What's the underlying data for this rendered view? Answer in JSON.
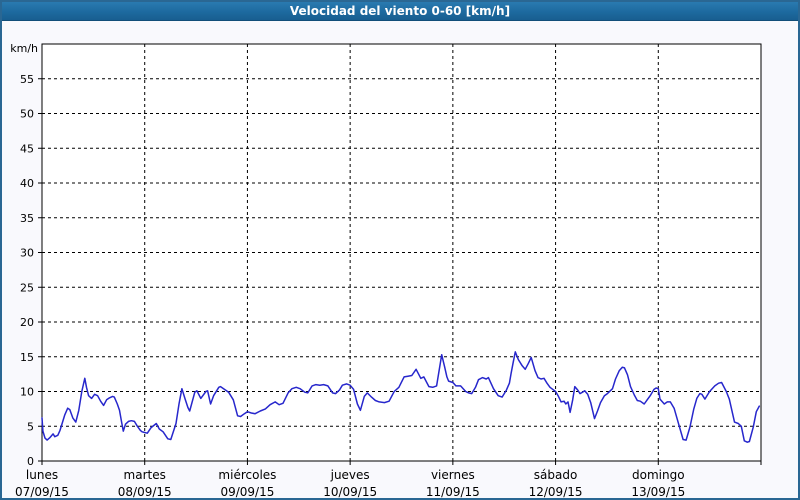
{
  "window": {
    "title": "Velocidad del viento 0-60 [km/h]"
  },
  "colors": {
    "titlebar_bg": "#1d6a9f",
    "titlebar_text": "#ffffff",
    "window_border": "#2a6793",
    "content_bg": "#f9f9fd",
    "plot_bg": "#ffffff",
    "plot_border": "#000000",
    "gridline": "#000000",
    "series_line": "#2727cc",
    "tick_text": "#000000"
  },
  "chart_data": {
    "type": "line",
    "title": "Velocidad del viento 0-60 [km/h]",
    "ylabel": "km/h",
    "xlabel": "",
    "ylim": [
      0,
      60
    ],
    "xlim_hours": [
      0,
      168
    ],
    "grid": "dashed",
    "legend": "none",
    "y_ticks": [
      0,
      5,
      10,
      15,
      20,
      25,
      30,
      35,
      40,
      45,
      50,
      55
    ],
    "x_day_labels": [
      {
        "name": "lunes",
        "date": "07/09/15"
      },
      {
        "name": "martes",
        "date": "08/09/15"
      },
      {
        "name": "miércoles",
        "date": "09/09/15"
      },
      {
        "name": "jueves",
        "date": "10/09/15"
      },
      {
        "name": "viernes",
        "date": "11/09/15"
      },
      {
        "name": "sábado",
        "date": "12/09/15"
      },
      {
        "name": "domingo",
        "date": "13/09/15"
      }
    ],
    "series": [
      {
        "name": "Velocidad del viento [km/h]",
        "points": [
          [
            0,
            6.2
          ],
          [
            0.2,
            4.3
          ],
          [
            0.7,
            3.3
          ],
          [
            1.2,
            3.0
          ],
          [
            1.9,
            3.4
          ],
          [
            2.6,
            3.9
          ],
          [
            3.0,
            3.5
          ],
          [
            3.7,
            3.7
          ],
          [
            4.2,
            4.4
          ],
          [
            4.6,
            5.2
          ],
          [
            5.3,
            6.6
          ],
          [
            6.0,
            7.6
          ],
          [
            6.5,
            7.4
          ],
          [
            7.2,
            6.2
          ],
          [
            7.9,
            5.6
          ],
          [
            8.6,
            7.3
          ],
          [
            9.3,
            10.0
          ],
          [
            10.0,
            11.9
          ],
          [
            10.4,
            10.6
          ],
          [
            10.9,
            9.4
          ],
          [
            11.6,
            9.0
          ],
          [
            12.3,
            9.6
          ],
          [
            13.0,
            9.4
          ],
          [
            13.7,
            8.6
          ],
          [
            14.4,
            8.0
          ],
          [
            15.1,
            8.8
          ],
          [
            15.8,
            9.1
          ],
          [
            16.5,
            9.3
          ],
          [
            16.9,
            9.2
          ],
          [
            17.6,
            8.2
          ],
          [
            18.1,
            7.3
          ],
          [
            18.6,
            5.6
          ],
          [
            19.0,
            4.3
          ],
          [
            19.5,
            5.3
          ],
          [
            20.2,
            5.7
          ],
          [
            20.9,
            5.8
          ],
          [
            21.6,
            5.7
          ],
          [
            22.3,
            5.0
          ],
          [
            23.0,
            4.4
          ],
          [
            23.4,
            4.2
          ],
          [
            24.0,
            4.1
          ],
          [
            24.6,
            4.0
          ],
          [
            25.5,
            4.8
          ],
          [
            26.7,
            5.4
          ],
          [
            27.4,
            4.6
          ],
          [
            28.3,
            4.2
          ],
          [
            29.4,
            3.2
          ],
          [
            30.1,
            3.1
          ],
          [
            31.3,
            5.4
          ],
          [
            32.0,
            8.2
          ],
          [
            32.7,
            10.4
          ],
          [
            33.4,
            9.0
          ],
          [
            34.1,
            7.7
          ],
          [
            34.5,
            7.2
          ],
          [
            35.7,
            9.9
          ],
          [
            36.2,
            10.1
          ],
          [
            37.1,
            9.0
          ],
          [
            38.3,
            10.0
          ],
          [
            38.7,
            10.1
          ],
          [
            39.4,
            8.2
          ],
          [
            40.1,
            9.4
          ],
          [
            41.3,
            10.6
          ],
          [
            41.7,
            10.7
          ],
          [
            42.9,
            10.2
          ],
          [
            43.6,
            9.9
          ],
          [
            44.7,
            8.8
          ],
          [
            45.7,
            6.5
          ],
          [
            46.4,
            6.4
          ],
          [
            47.3,
            6.8
          ],
          [
            48.0,
            7.1
          ],
          [
            48.9,
            6.9
          ],
          [
            49.8,
            6.8
          ],
          [
            51.0,
            7.2
          ],
          [
            52.2,
            7.5
          ],
          [
            53.3,
            8.1
          ],
          [
            54.5,
            8.5
          ],
          [
            55.4,
            8.1
          ],
          [
            56.3,
            8.3
          ],
          [
            57.5,
            9.8
          ],
          [
            58.4,
            10.4
          ],
          [
            59.4,
            10.6
          ],
          [
            60.3,
            10.4
          ],
          [
            61.4,
            9.9
          ],
          [
            62.1,
            9.8
          ],
          [
            63.1,
            10.8
          ],
          [
            64.0,
            11.0
          ],
          [
            64.9,
            10.9
          ],
          [
            65.8,
            11.0
          ],
          [
            66.8,
            10.8
          ],
          [
            67.9,
            9.8
          ],
          [
            68.6,
            9.7
          ],
          [
            69.5,
            10.2
          ],
          [
            70.2,
            10.9
          ],
          [
            71.2,
            11.1
          ],
          [
            72.0,
            10.9
          ],
          [
            72.8,
            10.3
          ],
          [
            73.7,
            8.2
          ],
          [
            74.4,
            7.3
          ],
          [
            75.3,
            9.3
          ],
          [
            76.0,
            9.8
          ],
          [
            77.0,
            9.2
          ],
          [
            77.9,
            8.7
          ],
          [
            78.8,
            8.5
          ],
          [
            80.0,
            8.4
          ],
          [
            81.1,
            8.6
          ],
          [
            82.3,
            10.0
          ],
          [
            83.4,
            10.6
          ],
          [
            84.6,
            12.1
          ],
          [
            85.5,
            12.2
          ],
          [
            86.4,
            12.3
          ],
          [
            87.4,
            13.2
          ],
          [
            88.5,
            11.9
          ],
          [
            89.2,
            12.1
          ],
          [
            90.4,
            10.7
          ],
          [
            91.3,
            10.6
          ],
          [
            92.2,
            10.8
          ],
          [
            93.4,
            15.3
          ],
          [
            94.1,
            13.5
          ],
          [
            94.6,
            12.1
          ],
          [
            95.0,
            11.5
          ],
          [
            96.0,
            11.3
          ],
          [
            96.7,
            10.8
          ],
          [
            97.8,
            10.8
          ],
          [
            99.0,
            10.0
          ],
          [
            99.7,
            9.8
          ],
          [
            100.4,
            9.7
          ],
          [
            101.3,
            10.6
          ],
          [
            102.0,
            11.7
          ],
          [
            102.9,
            12.0
          ],
          [
            103.8,
            11.8
          ],
          [
            104.3,
            12.0
          ],
          [
            105.5,
            10.4
          ],
          [
            106.6,
            9.4
          ],
          [
            107.5,
            9.2
          ],
          [
            108.5,
            10.2
          ],
          [
            109.2,
            11.2
          ],
          [
            109.6,
            12.6
          ],
          [
            110.1,
            14.2
          ],
          [
            110.6,
            15.7
          ],
          [
            111.3,
            14.6
          ],
          [
            112.2,
            13.7
          ],
          [
            112.9,
            13.2
          ],
          [
            113.6,
            14.0
          ],
          [
            114.3,
            14.9
          ],
          [
            115.2,
            13.0
          ],
          [
            115.9,
            12.0
          ],
          [
            116.6,
            11.8
          ],
          [
            117.3,
            11.9
          ],
          [
            118.0,
            11.2
          ],
          [
            118.7,
            10.6
          ],
          [
            120.0,
            10.0
          ],
          [
            120.6,
            9.4
          ],
          [
            121.3,
            8.5
          ],
          [
            122.0,
            8.6
          ],
          [
            122.4,
            8.2
          ],
          [
            122.9,
            8.5
          ],
          [
            123.4,
            7.0
          ],
          [
            124.0,
            8.8
          ],
          [
            124.5,
            10.7
          ],
          [
            125.2,
            10.2
          ],
          [
            125.7,
            9.7
          ],
          [
            126.3,
            9.9
          ],
          [
            126.8,
            10.1
          ],
          [
            127.5,
            9.6
          ],
          [
            128.2,
            8.4
          ],
          [
            129.1,
            6.1
          ],
          [
            129.8,
            7.2
          ],
          [
            130.5,
            8.4
          ],
          [
            131.4,
            9.4
          ],
          [
            132.1,
            9.7
          ],
          [
            133.3,
            10.4
          ],
          [
            134.0,
            11.8
          ],
          [
            134.9,
            13.0
          ],
          [
            135.6,
            13.5
          ],
          [
            136.1,
            13.4
          ],
          [
            136.8,
            12.4
          ],
          [
            137.5,
            10.7
          ],
          [
            138.4,
            9.5
          ],
          [
            139.1,
            8.7
          ],
          [
            139.8,
            8.6
          ],
          [
            140.7,
            8.2
          ],
          [
            141.4,
            8.8
          ],
          [
            142.1,
            9.4
          ],
          [
            143.0,
            10.3
          ],
          [
            143.5,
            10.5
          ],
          [
            144.0,
            10.4
          ],
          [
            144.4,
            8.9
          ],
          [
            145.4,
            8.2
          ],
          [
            146.1,
            8.5
          ],
          [
            146.8,
            8.5
          ],
          [
            147.7,
            7.6
          ],
          [
            148.9,
            5.0
          ],
          [
            149.8,
            3.1
          ],
          [
            150.5,
            3.0
          ],
          [
            151.4,
            4.9
          ],
          [
            152.3,
            7.5
          ],
          [
            153.0,
            9.0
          ],
          [
            153.7,
            9.7
          ],
          [
            154.2,
            9.6
          ],
          [
            154.9,
            8.9
          ],
          [
            156.0,
            10.0
          ],
          [
            157.2,
            10.8
          ],
          [
            158.1,
            11.2
          ],
          [
            158.8,
            11.3
          ],
          [
            159.9,
            10.0
          ],
          [
            160.6,
            8.9
          ],
          [
            161.8,
            5.6
          ],
          [
            162.7,
            5.4
          ],
          [
            163.4,
            5.0
          ],
          [
            164.1,
            2.9
          ],
          [
            164.8,
            2.7
          ],
          [
            165.3,
            2.8
          ],
          [
            166.2,
            4.9
          ],
          [
            166.9,
            7.1
          ],
          [
            167.6,
            7.9
          ]
        ]
      }
    ]
  }
}
